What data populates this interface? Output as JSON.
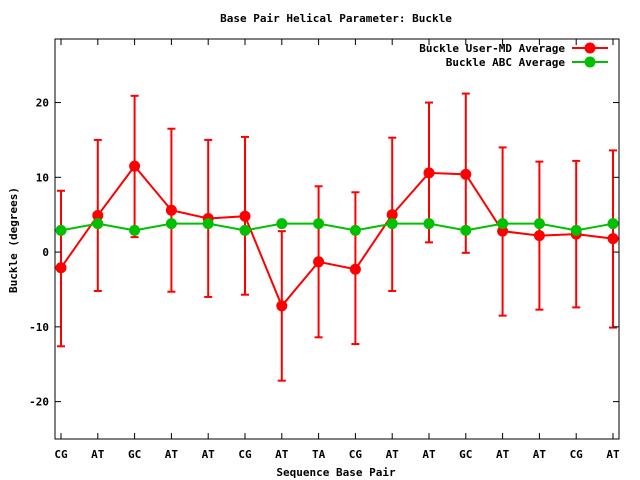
{
  "chart_data": {
    "type": "line",
    "title": "Base Pair Helical Parameter: Buckle",
    "xlabel": "Sequence Base Pair",
    "ylabel": "Buckle (degrees)",
    "categories": [
      "CG",
      "AT",
      "GC",
      "AT",
      "AT",
      "CG",
      "AT",
      "TA",
      "CG",
      "AT",
      "AT",
      "GC",
      "AT",
      "AT",
      "CG",
      "AT"
    ],
    "ylim": [
      -25,
      28.5
    ],
    "yticks": [
      -20,
      -10,
      0,
      10,
      20
    ],
    "ytick_labels": [
      "-20",
      "-10",
      "0",
      "10",
      "20"
    ],
    "legend_position": "top-right",
    "series": [
      {
        "name": "Buckle User-MD Average",
        "color": "#ff0000",
        "values": [
          -2.1,
          4.9,
          11.5,
          5.6,
          4.5,
          4.8,
          -7.2,
          -1.3,
          -2.3,
          5.0,
          10.6,
          10.4,
          2.8,
          2.2,
          2.4,
          1.8
        ],
        "err_low": [
          -12.6,
          -5.2,
          2.0,
          -5.3,
          -6.0,
          -5.7,
          -17.2,
          -11.4,
          -12.3,
          -5.2,
          1.3,
          -0.1,
          -8.5,
          -7.7,
          -7.4,
          -10.1
        ],
        "err_high": [
          8.2,
          15.0,
          20.9,
          16.5,
          15.0,
          15.4,
          2.8,
          8.8,
          8.0,
          15.3,
          20.0,
          21.2,
          14.0,
          12.1,
          12.2,
          13.6
        ]
      },
      {
        "name": "Buckle ABC Average",
        "color": "#00c000",
        "values": [
          2.9,
          3.8,
          2.9,
          3.8,
          3.8,
          2.9,
          3.8,
          3.8,
          2.9,
          3.8,
          3.8,
          2.9,
          3.8,
          3.8,
          2.9,
          3.8
        ]
      }
    ]
  }
}
